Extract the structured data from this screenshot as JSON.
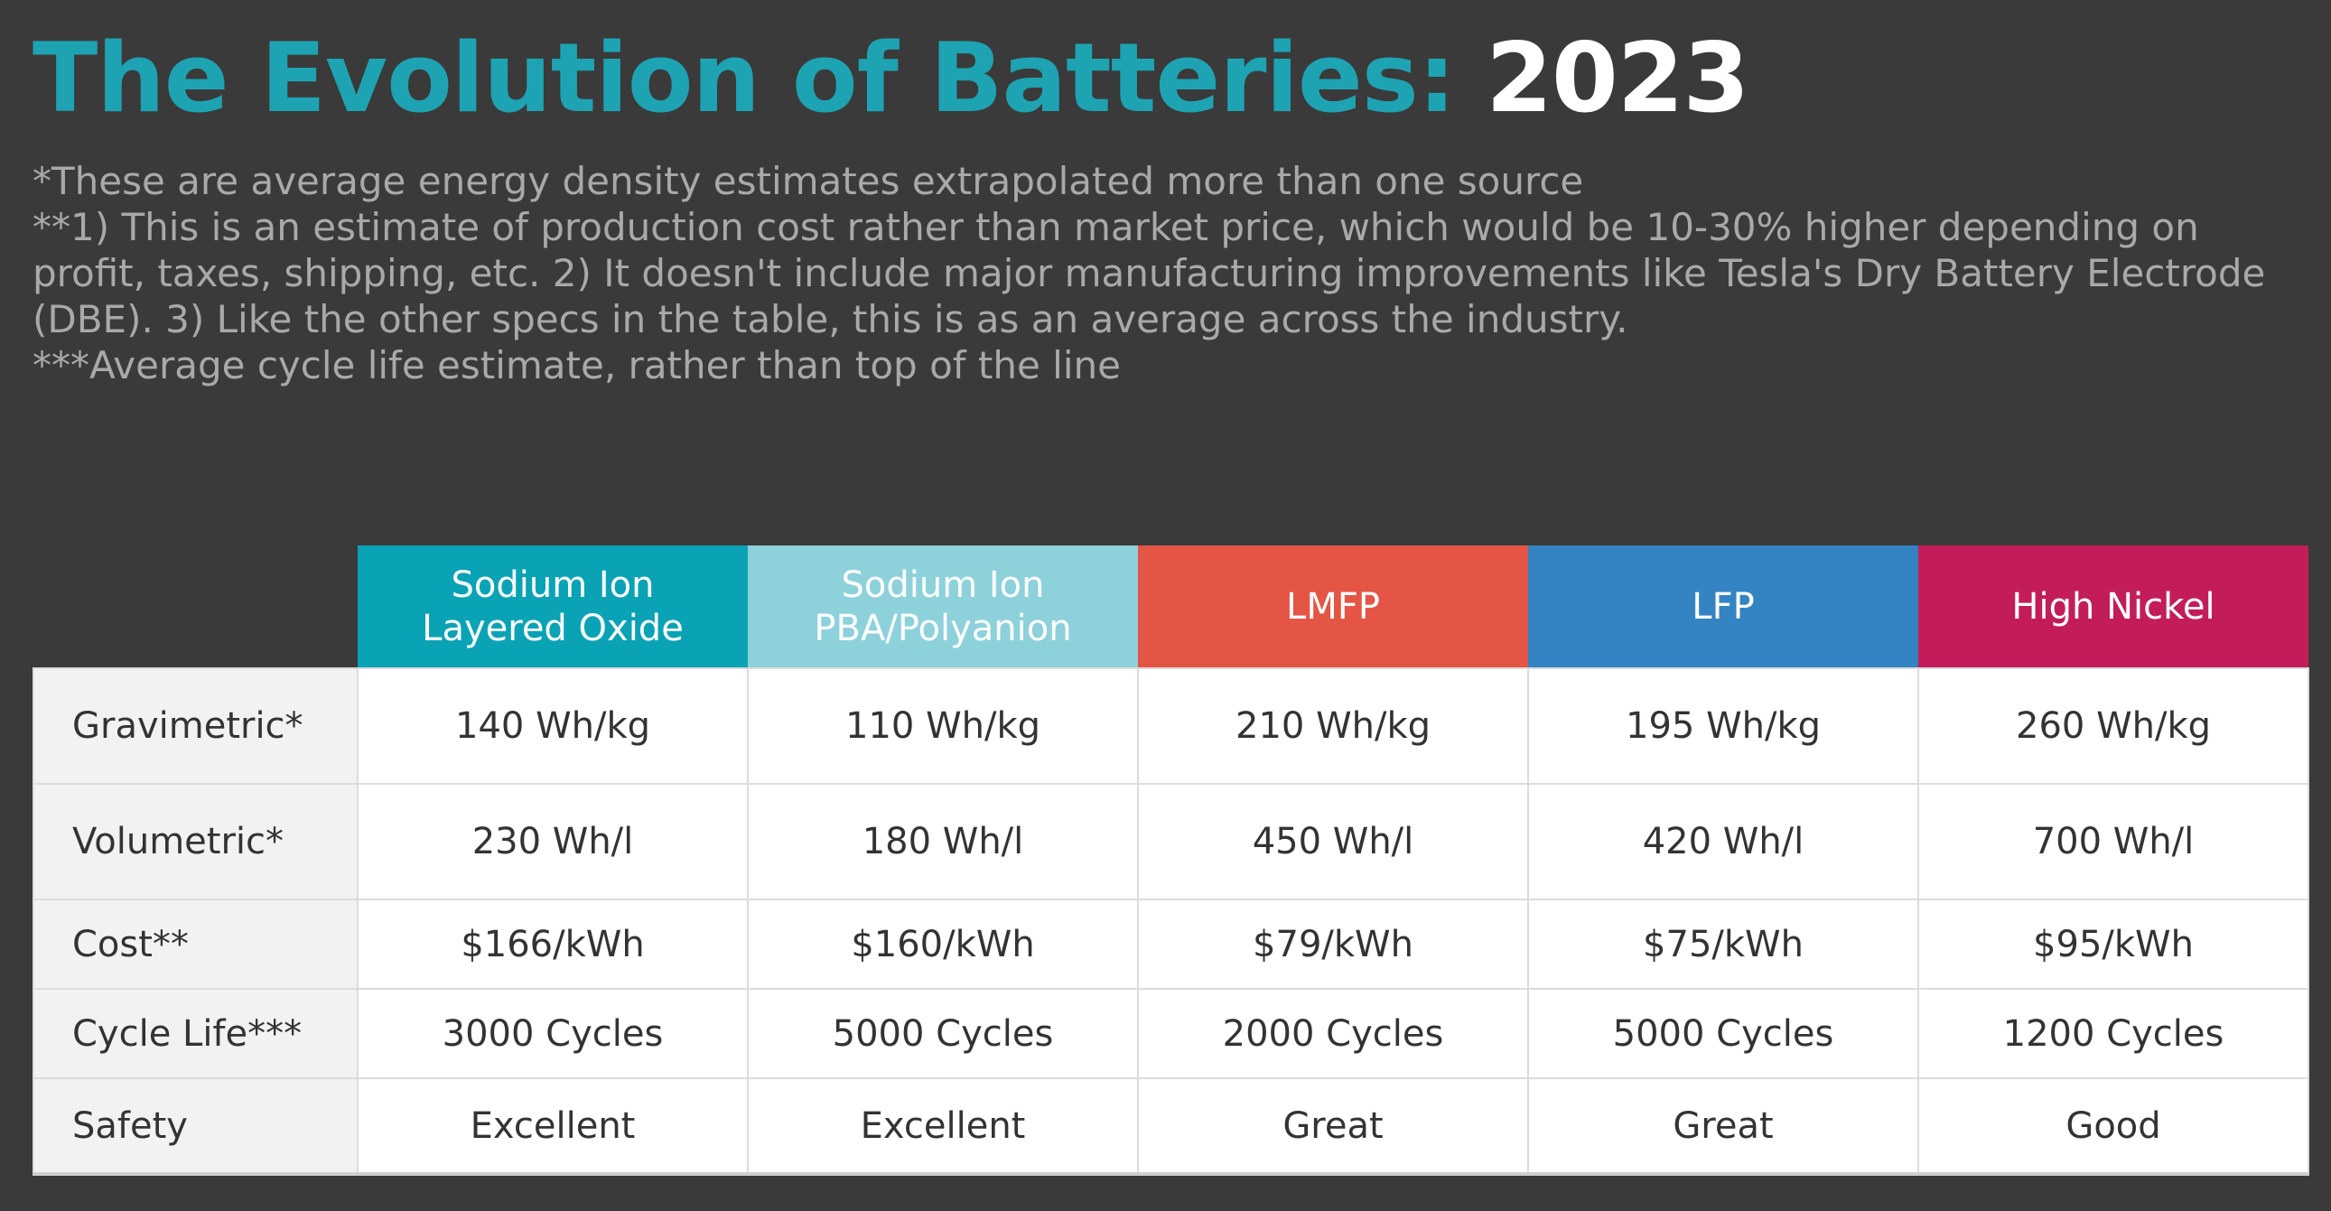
{
  "title": {
    "main": "The Evolution of Batteries:",
    "year": "2023"
  },
  "notes": [
    "*These are average energy density estimates extrapolated more than one source",
    "**1) This is an estimate of production cost rather than market price, which would be 10-30% higher depending on profit, taxes, shipping, etc.  2) It doesn't include major manufacturing improvements like Tesla's Dry Battery Electrode (DBE).  3) Like the other specs in the table, this is as an average across the industry.",
    "***Average cycle life estimate, rather than top of the line"
  ],
  "table": {
    "columns": [
      {
        "line1": "Sodium Ion",
        "line2": "Layered Oxide",
        "color": "#0aa3b5"
      },
      {
        "line1": "Sodium Ion",
        "line2": "PBA/Polyanion",
        "color": "#8dd1db"
      },
      {
        "line1": "LMFP",
        "line2": "",
        "color": "#e45545"
      },
      {
        "line1": "LFP",
        "line2": "",
        "color": "#3483c2"
      },
      {
        "line1": "High Nickel",
        "line2": "",
        "color": "#c21d5a"
      }
    ],
    "rows": [
      {
        "label": "Gravimetric*",
        "values": [
          "140 Wh/kg",
          "110 Wh/kg",
          "210 Wh/kg",
          "195 Wh/kg",
          "260 Wh/kg"
        ]
      },
      {
        "label": "Volumetric*",
        "values": [
          "230 Wh/l",
          "180 Wh/l",
          "450 Wh/l",
          "420 Wh/l",
          "700 Wh/l"
        ]
      },
      {
        "label": "Cost**",
        "values": [
          "$166/kWh",
          "$160/kWh",
          "$79/kWh",
          "$75/kWh",
          "$95/kWh"
        ]
      },
      {
        "label": "Cycle Life***",
        "values": [
          "3000 Cycles",
          "5000 Cycles",
          "2000 Cycles",
          "5000 Cycles",
          "1200 Cycles"
        ]
      },
      {
        "label": "Safety",
        "values": [
          "Excellent",
          "Excellent",
          "Great",
          "Great",
          "Good"
        ]
      }
    ]
  }
}
